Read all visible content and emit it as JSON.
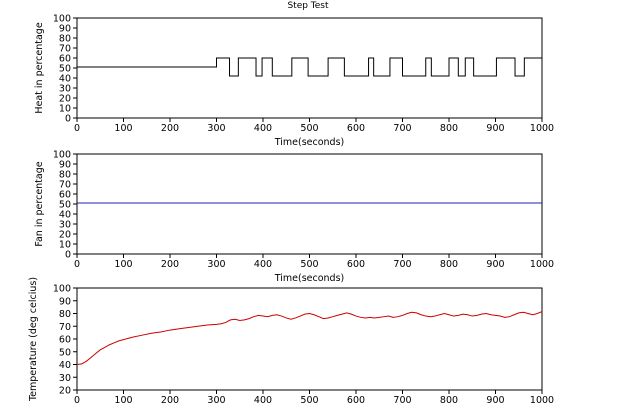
{
  "figure_title": "Step Test",
  "chart_data": [
    {
      "type": "line",
      "title": "Step Test",
      "xlabel": "Time(seconds)",
      "ylabel": "Heat in percentage",
      "xlim": [
        0,
        1000
      ],
      "ylim": [
        0,
        100
      ],
      "xticks": [
        0,
        100,
        200,
        300,
        400,
        500,
        600,
        700,
        800,
        900,
        1000
      ],
      "yticks": [
        0,
        10,
        20,
        30,
        40,
        50,
        60,
        70,
        80,
        90,
        100
      ],
      "grid": false,
      "color": "#000000",
      "series": [
        {
          "x": [
            0,
            300,
            300,
            328,
            328,
            347,
            347,
            385,
            385,
            398,
            398,
            420,
            420,
            462,
            462,
            497,
            497,
            540,
            540,
            575,
            575,
            627,
            627,
            638,
            638,
            673,
            673,
            700,
            700,
            750,
            750,
            762,
            762,
            800,
            800,
            820,
            820,
            835,
            835,
            853,
            853,
            902,
            902,
            942,
            942,
            962,
            962,
            1000
          ],
          "y": [
            51,
            51,
            60,
            60,
            42,
            42,
            60,
            60,
            42,
            42,
            60,
            60,
            42,
            42,
            60,
            60,
            42,
            42,
            60,
            60,
            42,
            42,
            60,
            60,
            42,
            42,
            60,
            60,
            42,
            42,
            60,
            60,
            42,
            42,
            60,
            60,
            42,
            42,
            60,
            60,
            42,
            42,
            60,
            60,
            42,
            42,
            60,
            60
          ]
        }
      ]
    },
    {
      "type": "line",
      "title": "",
      "xlabel": "Time(seconds)",
      "ylabel": "Fan in percentage",
      "xlim": [
        0,
        1000
      ],
      "ylim": [
        0,
        100
      ],
      "xticks": [
        0,
        100,
        200,
        300,
        400,
        500,
        600,
        700,
        800,
        900,
        1000
      ],
      "yticks": [
        0,
        10,
        20,
        30,
        40,
        50,
        60,
        70,
        80,
        90,
        100
      ],
      "grid": false,
      "color": "#1f1fb4",
      "series": [
        {
          "x": [
            0,
            1000
          ],
          "y": [
            51,
            51
          ]
        }
      ]
    },
    {
      "type": "line",
      "title": "",
      "xlabel": "",
      "ylabel": "Temperature (deg celcius)",
      "xlim": [
        0,
        1000
      ],
      "ylim": [
        20,
        100
      ],
      "xticks": [
        0,
        100,
        200,
        300,
        400,
        500,
        600,
        700,
        800,
        900,
        1000
      ],
      "yticks": [
        20,
        30,
        40,
        50,
        60,
        70,
        80,
        90,
        100
      ],
      "grid": false,
      "color": "#cc0000",
      "series": [
        {
          "x": [
            0,
            10,
            20,
            30,
            40,
            50,
            60,
            70,
            80,
            90,
            100,
            120,
            140,
            160,
            180,
            200,
            220,
            240,
            260,
            280,
            300,
            310,
            320,
            330,
            340,
            350,
            360,
            370,
            380,
            390,
            400,
            410,
            420,
            430,
            440,
            450,
            460,
            470,
            480,
            490,
            500,
            510,
            520,
            530,
            540,
            550,
            560,
            570,
            580,
            590,
            600,
            610,
            620,
            630,
            640,
            650,
            660,
            670,
            680,
            690,
            700,
            710,
            720,
            730,
            740,
            750,
            760,
            770,
            780,
            790,
            800,
            810,
            820,
            830,
            840,
            850,
            860,
            870,
            880,
            890,
            900,
            910,
            920,
            930,
            940,
            950,
            960,
            970,
            980,
            990,
            1000
          ],
          "y": [
            40,
            40.5,
            42.5,
            45.5,
            48.5,
            51.5,
            53.5,
            55.5,
            57,
            58.5,
            59.5,
            61.5,
            63,
            64.5,
            65.5,
            67,
            68,
            69,
            70,
            71,
            71.5,
            72,
            73,
            75,
            75.5,
            74.5,
            75,
            76,
            77.5,
            78.5,
            78,
            77.5,
            78.5,
            79,
            78,
            76.5,
            75.5,
            76.5,
            78,
            79.5,
            80,
            79,
            77.5,
            76,
            76.5,
            77.5,
            78.5,
            79.5,
            80.5,
            79.5,
            78,
            77,
            76.5,
            77,
            76.5,
            77,
            77.5,
            78,
            77,
            77.5,
            78.5,
            80,
            81,
            80.5,
            79,
            78,
            77.5,
            78,
            79,
            80,
            79,
            78,
            78.5,
            79.5,
            79,
            78,
            78.5,
            79.5,
            80,
            79,
            78.5,
            78,
            77,
            77.5,
            79,
            80.5,
            81,
            80,
            79,
            80,
            81.5
          ]
        }
      ]
    }
  ]
}
